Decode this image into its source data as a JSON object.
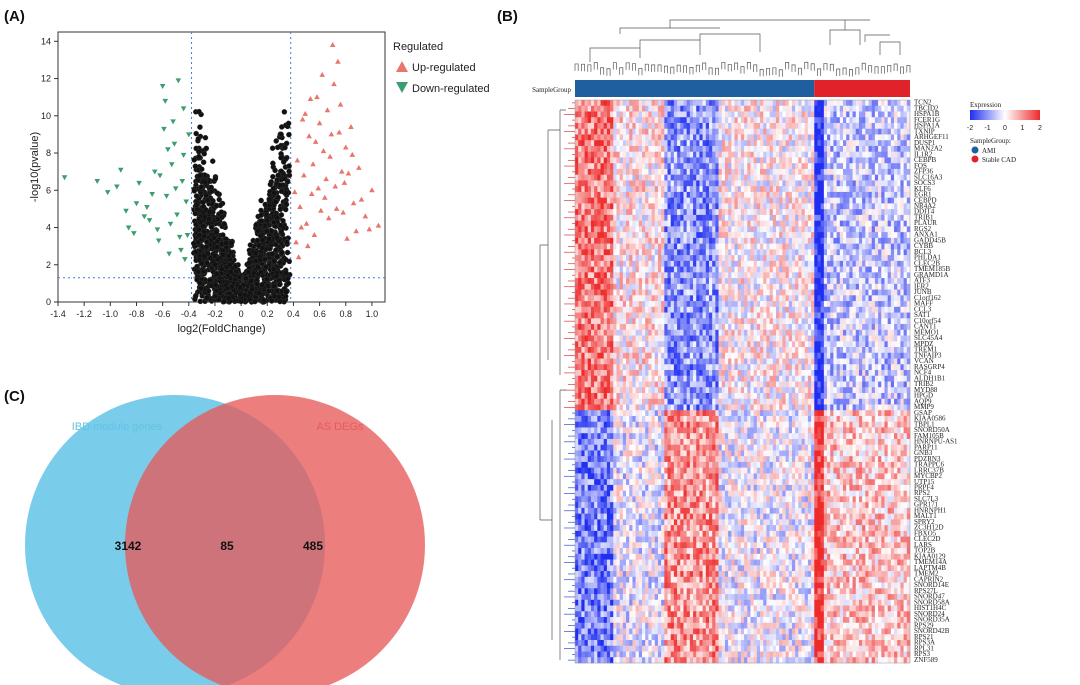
{
  "panels": {
    "a": "(A)",
    "b": "(B)",
    "c": "(C)"
  },
  "chart_data": [
    {
      "panel": "(A)",
      "type": "scatter",
      "xlabel": "log2(FoldChange)",
      "ylabel": "-log10(pvalue)",
      "xlim": [
        -1.4,
        1.1
      ],
      "ylim": [
        0,
        14.5
      ],
      "xticks": [
        -1.4,
        -1.2,
        -1.0,
        -0.8,
        -0.6,
        -0.4,
        -0.2,
        0,
        0.2,
        0.4,
        0.6,
        0.8,
        1.0
      ],
      "xtick_labels": [
        "-1.4",
        "-1.2",
        "-1.0",
        "-0.8",
        "-0.6",
        "-0.4",
        "-0.2",
        "0",
        "0.2",
        "0.4",
        "0.6",
        "0.8",
        "1.0"
      ],
      "yticks": [
        0,
        2,
        4,
        6,
        8,
        10,
        12,
        14
      ],
      "ytick_labels": [
        "0",
        "2",
        "4",
        "6",
        "8",
        "10",
        "12",
        "14"
      ],
      "thresholds": {
        "x": [
          -0.379,
          0.379
        ],
        "y": 1.301
      },
      "legend": {
        "title": "Regulated",
        "placement": "right",
        "entries": [
          {
            "label": "Up-regulated",
            "color": "#e8766b",
            "marker": "triangle-up"
          },
          {
            "label": "Down-regulated",
            "color": "#3a9e6e",
            "marker": "triangle-down"
          }
        ]
      },
      "series": [
        {
          "name": "Up-regulated",
          "color": "#e8766b",
          "points": [
            [
              0.42,
              3.2
            ],
            [
              0.45,
              5.1
            ],
            [
              0.48,
              6.8
            ],
            [
              0.5,
              4.2
            ],
            [
              0.52,
              8.9
            ],
            [
              0.55,
              7.4
            ],
            [
              0.58,
              11.0
            ],
            [
              0.6,
              9.6
            ],
            [
              0.62,
              12.2
            ],
            [
              0.64,
              5.6
            ],
            [
              0.66,
              10.3
            ],
            [
              0.68,
              7.8
            ],
            [
              0.7,
              13.8
            ],
            [
              0.72,
              6.2
            ],
            [
              0.75,
              9.1
            ],
            [
              0.78,
              4.8
            ],
            [
              0.8,
              8.3
            ],
            [
              0.82,
              6.9
            ],
            [
              0.86,
              5.3
            ],
            [
              0.9,
              7.2
            ],
            [
              0.95,
              4.6
            ],
            [
              1.0,
              6.0
            ],
            [
              1.05,
              4.1
            ],
            [
              0.44,
              2.4
            ],
            [
              0.47,
              9.8
            ],
            [
              0.53,
              10.9
            ],
            [
              0.56,
              3.6
            ],
            [
              0.59,
              6.1
            ],
            [
              0.63,
              8.1
            ],
            [
              0.67,
              4.5
            ],
            [
              0.71,
              11.7
            ],
            [
              0.74,
              12.9
            ],
            [
              0.77,
              7.0
            ],
            [
              0.84,
              9.4
            ],
            [
              0.88,
              3.8
            ],
            [
              0.41,
              5.9
            ],
            [
              0.43,
              7.6
            ],
            [
              0.46,
              4.0
            ],
            [
              0.49,
              10.1
            ],
            [
              0.51,
              3.0
            ],
            [
              0.54,
              5.8
            ],
            [
              0.57,
              8.6
            ],
            [
              0.61,
              4.9
            ],
            [
              0.65,
              6.6
            ],
            [
              0.69,
              9.0
            ],
            [
              0.73,
              5.0
            ],
            [
              0.76,
              10.6
            ],
            [
              0.79,
              6.4
            ],
            [
              0.81,
              3.4
            ],
            [
              0.85,
              7.9
            ],
            [
              0.92,
              5.5
            ],
            [
              0.98,
              3.9
            ]
          ]
        },
        {
          "name": "Down-regulated",
          "color": "#3a9e6e",
          "points": [
            [
              -1.35,
              6.7
            ],
            [
              -1.1,
              6.5
            ],
            [
              -1.02,
              5.9
            ],
            [
              -0.95,
              6.2
            ],
            [
              -0.88,
              4.9
            ],
            [
              -0.82,
              3.7
            ],
            [
              -0.78,
              6.4
            ],
            [
              -0.72,
              5.1
            ],
            [
              -0.7,
              4.4
            ],
            [
              -0.66,
              7.0
            ],
            [
              -0.63,
              3.3
            ],
            [
              -0.6,
              11.6
            ],
            [
              -0.58,
              10.8
            ],
            [
              -0.56,
              8.2
            ],
            [
              -0.54,
              4.2
            ],
            [
              -0.52,
              9.7
            ],
            [
              -0.5,
              6.1
            ],
            [
              -0.48,
              11.9
            ],
            [
              -0.46,
              2.8
            ],
            [
              -0.44,
              7.9
            ],
            [
              -0.42,
              5.4
            ],
            [
              -0.41,
              3.6
            ],
            [
              -0.4,
              9.0
            ],
            [
              -0.62,
              6.8
            ],
            [
              -0.57,
              5.7
            ],
            [
              -0.53,
              7.4
            ],
            [
              -0.49,
              4.7
            ],
            [
              -0.45,
              6.5
            ],
            [
              -0.43,
              2.3
            ],
            [
              -0.68,
              5.8
            ],
            [
              -0.74,
              4.6
            ],
            [
              -0.8,
              5.3
            ],
            [
              -0.86,
              4.0
            ],
            [
              -0.92,
              7.1
            ],
            [
              -0.64,
              3.9
            ],
            [
              -0.59,
              9.3
            ],
            [
              -0.55,
              2.6
            ],
            [
              -0.51,
              8.5
            ],
            [
              -0.47,
              3.5
            ],
            [
              -0.44,
              10.4
            ]
          ]
        }
      ]
    },
    {
      "panel": "(B)",
      "type": "heatmap",
      "top_annotation_label": "SampleGroup",
      "legend": {
        "title": "Expression",
        "scale_ticks": [
          "-2",
          "-1",
          "0",
          "1",
          "2"
        ],
        "group_title": "SampleGroup:",
        "groups": [
          {
            "label": "AMI",
            "color": "#1f5fa0"
          },
          {
            "label": "Stable CAD",
            "color": "#e0232b"
          }
        ]
      },
      "colormap": {
        "low": "#1f2ef0",
        "mid": "#ffffff",
        "high": "#ee2a2a"
      },
      "n_samples": {
        "AMI": 75,
        "Stable CAD": 30
      },
      "rows_up": [
        "TCN2",
        "TBCID2",
        "HSPA1B",
        "FCER1G",
        "HSPA1A",
        "TXNIP",
        "ARHGEF11",
        "DUSP1",
        "MAN2A2",
        "IL1R2",
        "CEBPB",
        "FOS",
        "ZFP36",
        "SLC16A3",
        "SOCS3",
        "KLF6",
        "EGR1",
        "CEBPD",
        "NR4A2",
        "DDIT4",
        "TRIB1",
        "PLAUR",
        "RGS2",
        "ANXA1",
        "GADD45B",
        "CYBB",
        "BCL3",
        "PHLDA1",
        "CLEC2B",
        "TMEM185B",
        "GRAMD1A",
        "ATF3",
        "IER2",
        "JUNB",
        "C1orf162",
        "MAFF",
        "CCL3",
        "SAT1",
        "C10orf54",
        "CANT1",
        "MEMO1",
        "SLC45A4",
        "MPDZ",
        "TREM1",
        "TNFAIP3",
        "VCAN",
        "RASGRP4",
        "NCF4",
        "ALDH1B1",
        "TRIB2",
        "MYD88",
        "HPGD",
        "AQP9",
        "MMP9"
      ],
      "rows_down": [
        "GSAP",
        "KIAA0586",
        "TBPL1",
        "SNORD50A",
        "FAM105B",
        "HNRNPU-AS1",
        "PARP11",
        "GNB3",
        "PDZRN3",
        "TRAPPC6",
        "LRRC37B",
        "MYCBP2",
        "UTP15",
        "PRPF4",
        "RPS2",
        "SLC7L3",
        "GPR171",
        "HNRNPH1",
        "MALT1",
        "SPRY2",
        "ZC3H12D",
        "FBXO5",
        "CLEC2D",
        "LARS",
        "TOP2B",
        "KIAA0129",
        "TMEM14A",
        "LAPTM4B",
        "TMEM2",
        "CAPRIN2",
        "SNORD14E",
        "RPS27L",
        "SNORD47",
        "SNORD58A",
        "HIST1H4C",
        "SNORD24",
        "SNORD35A",
        "RPS29",
        "SNORD42B",
        "RPS21",
        "RPS3A",
        "RPL31",
        "RPS3",
        "ZNF589"
      ]
    },
    {
      "panel": "(C)",
      "type": "venn",
      "sets": [
        {
          "label": "IBD module genes",
          "count": "3142",
          "color": "#62c3e6"
        },
        {
          "label": "AS DEGs",
          "count": "485",
          "color": "#e85a5a"
        }
      ],
      "intersection": "85"
    }
  ]
}
